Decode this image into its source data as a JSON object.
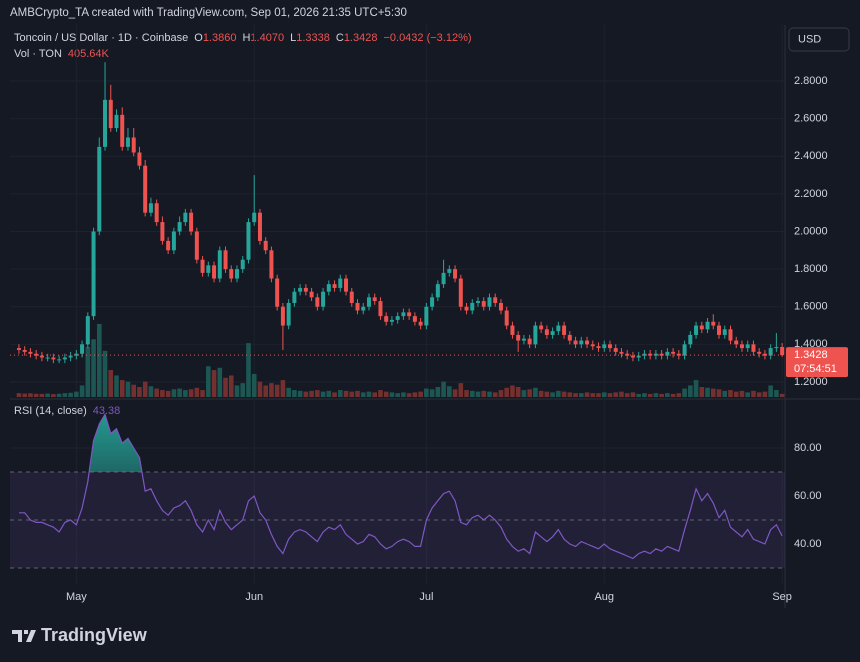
{
  "header": {
    "credit": "AMBCrypto_TA created with TradingView.com, Sep 01, 2026 21:35 UTC+5:30",
    "symbol": "Toncoin / US Dollar · 1D · Coinbase",
    "o_key": "O",
    "o_text": "1.3860",
    "h_key": "H",
    "h_text": "1.4070",
    "l_key": "L",
    "l_text": "1.3338",
    "c_key": "C",
    "change_text": "−0.0432 (−3.12%)",
    "vol_title": "Vol · TON",
    "vol_text": "405.64K",
    "currency": "USD",
    "countdown": "07:54:51",
    "rsi_title": "RSI (14, close)",
    "logo": "TradingView"
  },
  "chart_data": {
    "type": "candlestick",
    "up_color": "#26a69a",
    "down_color": "#ef5350",
    "grid": true,
    "open": [
      1.38,
      1.37,
      1.36,
      1.35,
      1.34,
      1.33,
      1.33,
      1.32,
      1.32,
      1.33,
      1.34,
      1.35,
      1.4,
      1.55,
      2.0,
      2.45,
      2.7,
      2.55,
      2.62,
      2.45,
      2.5,
      2.42,
      2.35,
      2.1,
      2.15,
      2.05,
      1.95,
      1.9,
      2.0,
      2.05,
      2.1,
      2.0,
      1.85,
      1.78,
      1.82,
      1.75,
      1.9,
      1.8,
      1.75,
      1.8,
      1.85,
      2.05,
      2.1,
      1.95,
      1.9,
      1.75,
      1.6,
      1.5,
      1.62,
      1.68,
      1.7,
      1.68,
      1.65,
      1.6,
      1.68,
      1.72,
      1.7,
      1.75,
      1.68,
      1.62,
      1.58,
      1.6,
      1.65,
      1.63,
      1.55,
      1.52,
      1.53,
      1.55,
      1.57,
      1.55,
      1.52,
      1.5,
      1.6,
      1.65,
      1.72,
      1.78,
      1.8,
      1.75,
      1.6,
      1.58,
      1.62,
      1.63,
      1.6,
      1.65,
      1.62,
      1.58,
      1.5,
      1.45,
      1.42,
      1.43,
      1.4,
      1.5,
      1.48,
      1.45,
      1.47,
      1.5,
      1.45,
      1.42,
      1.4,
      1.42,
      1.4,
      1.39,
      1.38,
      1.4,
      1.38,
      1.36,
      1.35,
      1.34,
      1.33,
      1.34,
      1.35,
      1.34,
      1.35,
      1.34,
      1.36,
      1.35,
      1.34,
      1.4,
      1.45,
      1.5,
      1.48,
      1.52,
      1.5,
      1.45,
      1.48,
      1.42,
      1.4,
      1.38,
      1.4,
      1.36,
      1.35,
      1.34,
      1.38,
      1.386
    ],
    "high": [
      1.4,
      1.39,
      1.38,
      1.37,
      1.36,
      1.35,
      1.35,
      1.34,
      1.35,
      1.36,
      1.37,
      1.42,
      1.57,
      2.02,
      2.5,
      2.9,
      2.78,
      2.65,
      2.66,
      2.55,
      2.55,
      2.45,
      2.38,
      2.18,
      2.17,
      2.08,
      1.97,
      2.02,
      2.08,
      2.12,
      2.12,
      2.02,
      1.87,
      1.84,
      1.84,
      1.92,
      1.92,
      1.82,
      1.82,
      1.87,
      2.07,
      2.3,
      2.12,
      1.97,
      1.92,
      1.77,
      1.62,
      1.64,
      1.7,
      1.72,
      1.72,
      1.7,
      1.67,
      1.7,
      1.74,
      1.74,
      1.77,
      1.77,
      1.7,
      1.64,
      1.62,
      1.67,
      1.67,
      1.65,
      1.57,
      1.55,
      1.57,
      1.59,
      1.59,
      1.57,
      1.54,
      1.62,
      1.67,
      1.74,
      1.85,
      1.82,
      1.82,
      1.77,
      1.62,
      1.64,
      1.65,
      1.65,
      1.67,
      1.67,
      1.64,
      1.6,
      1.52,
      1.47,
      1.45,
      1.45,
      1.52,
      1.52,
      1.5,
      1.49,
      1.52,
      1.52,
      1.47,
      1.44,
      1.44,
      1.44,
      1.42,
      1.41,
      1.42,
      1.42,
      1.4,
      1.38,
      1.37,
      1.36,
      1.36,
      1.37,
      1.37,
      1.37,
      1.37,
      1.38,
      1.38,
      1.37,
      1.42,
      1.47,
      1.52,
      1.52,
      1.54,
      1.56,
      1.52,
      1.5,
      1.5,
      1.44,
      1.42,
      1.42,
      1.42,
      1.38,
      1.37,
      1.4,
      1.46,
      1.407
    ],
    "low": [
      1.35,
      1.34,
      1.33,
      1.32,
      1.31,
      1.31,
      1.3,
      1.3,
      1.3,
      1.31,
      1.32,
      1.33,
      1.38,
      1.53,
      1.98,
      2.43,
      2.53,
      2.53,
      2.43,
      2.43,
      2.4,
      2.33,
      2.08,
      2.08,
      2.03,
      1.93,
      1.88,
      1.88,
      1.98,
      2.03,
      1.98,
      1.83,
      1.76,
      1.76,
      1.73,
      1.73,
      1.78,
      1.73,
      1.73,
      1.78,
      1.83,
      2.03,
      1.93,
      1.88,
      1.73,
      1.58,
      1.37,
      1.48,
      1.6,
      1.66,
      1.66,
      1.63,
      1.58,
      1.58,
      1.66,
      1.68,
      1.68,
      1.66,
      1.6,
      1.56,
      1.56,
      1.58,
      1.61,
      1.53,
      1.5,
      1.5,
      1.51,
      1.53,
      1.53,
      1.5,
      1.48,
      1.48,
      1.58,
      1.63,
      1.7,
      1.76,
      1.73,
      1.58,
      1.56,
      1.56,
      1.6,
      1.58,
      1.58,
      1.6,
      1.56,
      1.48,
      1.43,
      1.36,
      1.4,
      1.38,
      1.38,
      1.46,
      1.43,
      1.43,
      1.45,
      1.43,
      1.4,
      1.38,
      1.38,
      1.38,
      1.37,
      1.36,
      1.36,
      1.36,
      1.34,
      1.33,
      1.32,
      1.31,
      1.31,
      1.32,
      1.32,
      1.32,
      1.32,
      1.32,
      1.33,
      1.32,
      1.32,
      1.38,
      1.43,
      1.46,
      1.46,
      1.48,
      1.43,
      1.43,
      1.4,
      1.38,
      1.36,
      1.36,
      1.34,
      1.33,
      1.32,
      1.32,
      1.36,
      1.3338
    ],
    "close": [
      1.37,
      1.36,
      1.35,
      1.34,
      1.33,
      1.33,
      1.32,
      1.32,
      1.33,
      1.34,
      1.35,
      1.4,
      1.55,
      2.0,
      2.45,
      2.7,
      2.55,
      2.62,
      2.45,
      2.5,
      2.42,
      2.35,
      2.1,
      2.15,
      2.05,
      1.95,
      1.9,
      2.0,
      2.05,
      2.1,
      2.0,
      1.85,
      1.78,
      1.82,
      1.75,
      1.9,
      1.8,
      1.75,
      1.8,
      1.85,
      2.05,
      2.1,
      1.95,
      1.9,
      1.75,
      1.6,
      1.5,
      1.62,
      1.68,
      1.7,
      1.68,
      1.65,
      1.6,
      1.68,
      1.72,
      1.7,
      1.75,
      1.68,
      1.62,
      1.58,
      1.6,
      1.65,
      1.63,
      1.55,
      1.52,
      1.53,
      1.55,
      1.57,
      1.55,
      1.52,
      1.5,
      1.6,
      1.65,
      1.72,
      1.78,
      1.8,
      1.75,
      1.6,
      1.58,
      1.62,
      1.63,
      1.6,
      1.65,
      1.62,
      1.58,
      1.5,
      1.45,
      1.42,
      1.43,
      1.4,
      1.5,
      1.48,
      1.45,
      1.47,
      1.5,
      1.45,
      1.42,
      1.4,
      1.42,
      1.4,
      1.39,
      1.38,
      1.4,
      1.38,
      1.36,
      1.35,
      1.34,
      1.33,
      1.34,
      1.35,
      1.34,
      1.35,
      1.34,
      1.36,
      1.35,
      1.34,
      1.4,
      1.45,
      1.5,
      1.48,
      1.52,
      1.5,
      1.45,
      1.48,
      1.42,
      1.4,
      1.38,
      1.4,
      1.36,
      1.35,
      1.34,
      1.38,
      1.386,
      1.3428
    ],
    "volume": [
      500,
      450,
      480,
      420,
      400,
      450,
      380,
      420,
      500,
      550,
      700,
      1500,
      6500,
      7500,
      9500,
      6000,
      3500,
      2800,
      2200,
      2000,
      1600,
      1300,
      2000,
      1400,
      1100,
      900,
      800,
      1000,
      1100,
      900,
      1000,
      1200,
      900,
      4000,
      3500,
      3800,
      2500,
      2800,
      1500,
      1800,
      7000,
      3000,
      2000,
      1500,
      1800,
      1600,
      2200,
      1200,
      900,
      800,
      700,
      800,
      900,
      700,
      800,
      600,
      900,
      800,
      700,
      800,
      600,
      700,
      600,
      900,
      700,
      600,
      500,
      600,
      500,
      600,
      700,
      1100,
      1000,
      1300,
      2000,
      1400,
      1000,
      1800,
      900,
      800,
      700,
      800,
      700,
      600,
      900,
      1200,
      1500,
      1300,
      900,
      1000,
      1200,
      800,
      700,
      600,
      800,
      700,
      600,
      500,
      500,
      600,
      500,
      500,
      600,
      500,
      600,
      700,
      500,
      600,
      400,
      500,
      400,
      500,
      400,
      500,
      400,
      500,
      1100,
      1500,
      2200,
      1300,
      1200,
      1100,
      1000,
      800,
      900,
      700,
      800,
      600,
      800,
      600,
      700,
      1500,
      900,
      405.64
    ],
    "vlim": [
      0,
      13000
    ],
    "rsi": [
      53,
      53,
      50,
      49,
      49,
      48,
      47,
      45,
      49,
      50,
      48,
      55,
      66,
      83,
      90,
      94,
      86,
      88,
      82,
      84,
      80,
      76,
      62,
      63,
      58,
      54,
      52,
      55,
      56,
      58,
      54,
      48,
      45,
      50,
      46,
      54,
      49,
      46,
      48,
      50,
      58,
      60,
      53,
      50,
      44,
      39,
      36,
      42,
      45,
      46,
      45,
      43,
      41,
      45,
      47,
      46,
      48,
      44,
      42,
      40,
      41,
      44,
      43,
      40,
      38,
      39,
      41,
      42,
      41,
      39,
      39,
      50,
      55,
      58,
      61,
      62,
      58,
      49,
      48,
      51,
      52,
      50,
      52,
      50,
      47,
      42,
      39,
      37,
      38,
      36,
      45,
      43,
      41,
      43,
      46,
      42,
      40,
      39,
      41,
      40,
      39,
      38,
      40,
      38,
      37,
      36,
      35,
      34,
      36,
      37,
      36,
      38,
      37,
      39,
      38,
      37,
      46,
      54,
      63,
      58,
      61,
      57,
      51,
      54,
      47,
      45,
      43,
      46,
      42,
      41,
      40,
      46,
      48,
      43.38
    ],
    "rsi_color": "#7e57c2",
    "rsi_ylim": [
      22.9,
      100
    ],
    "rsi_ticks": [
      {
        "value": 80,
        "label": "80.00"
      },
      {
        "value": 60,
        "label": "60.00"
      },
      {
        "value": 40,
        "label": "40.00"
      }
    ],
    "rsi_bands": [
      70,
      50,
      30
    ],
    "ylim": [
      1.12,
      3.098
    ],
    "yticks": [
      {
        "value": 2.8,
        "label": "2.8000"
      },
      {
        "value": 2.6,
        "label": "2.6000"
      },
      {
        "value": 2.4,
        "label": "2.4000"
      },
      {
        "value": 2.2,
        "label": "2.2000"
      },
      {
        "value": 2,
        "label": "2.0000"
      },
      {
        "value": 1.8,
        "label": "1.8000"
      },
      {
        "value": 1.6,
        "label": "1.6000"
      },
      {
        "value": 1.4,
        "label": "1.4000"
      },
      {
        "value": 1.2,
        "label": "1.2000"
      }
    ],
    "xlim": [
      -1.56,
      133.5
    ],
    "xticks": [
      {
        "value": 10,
        "label": "May"
      },
      {
        "value": 41,
        "label": "Jun"
      },
      {
        "value": 71,
        "label": "Jul"
      },
      {
        "value": 102,
        "label": "Aug"
      },
      {
        "value": 133,
        "label": "Sep"
      }
    ]
  }
}
